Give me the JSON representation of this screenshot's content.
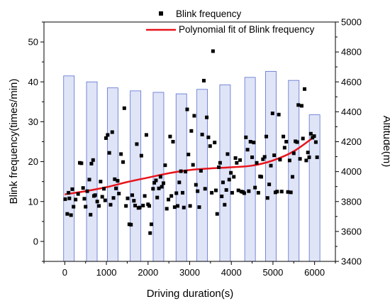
{
  "chart_data": {
    "type": "scatter",
    "xlabel": "Driving duration(s)",
    "ylabel": "Blink frequency(times/min)",
    "y2label": "Altitude(m)",
    "xlim": [
      -500,
      6500
    ],
    "ylim": [
      -5,
      55
    ],
    "y2lim": [
      3400,
      5000
    ],
    "x_ticks": [
      0,
      1000,
      2000,
      3000,
      4000,
      5000,
      6000
    ],
    "y_ticks": [
      0,
      10,
      20,
      30,
      40,
      50
    ],
    "y2_ticks": [
      3400,
      3600,
      3800,
      4000,
      4200,
      4400,
      4600,
      4800,
      5000
    ],
    "grid": false,
    "legend_position": "top-right",
    "legend": {
      "scatter_label": "Blink frequency",
      "fit_label": "Polynomial fit of Blink frequency"
    },
    "altitude_bars": {
      "x": [
        100,
        650,
        1150,
        1700,
        2250,
        2800,
        3300,
        3850,
        4450,
        4950,
        5500,
        6000
      ],
      "values": [
        4640,
        4600,
        4560,
        4540,
        4530,
        4520,
        4550,
        4580,
        4630,
        4670,
        4610,
        4380
      ],
      "color": "#dfe4f7",
      "edge_color": "#5a6fcf"
    },
    "fit_line": {
      "x": [
        0,
        500,
        1000,
        1500,
        2000,
        2500,
        3000,
        3500,
        4000,
        4500,
        5000,
        5500,
        6000
      ],
      "y": [
        11.8,
        12.6,
        13.6,
        14.9,
        16.0,
        17.1,
        17.9,
        18.3,
        18.6,
        19.0,
        20.3,
        22.6,
        26.3
      ],
      "color": "#e8141b"
    },
    "series": [
      {
        "name": "Blink frequency",
        "marker": "square",
        "color": "#000000",
        "points": [
          [
            10,
            10.6
          ],
          [
            60,
            6.9
          ],
          [
            90,
            12.2
          ],
          [
            110,
            10.8
          ],
          [
            150,
            6.6
          ],
          [
            180,
            13.1
          ],
          [
            210,
            8.7
          ],
          [
            260,
            10.5
          ],
          [
            320,
            11.9
          ],
          [
            360,
            19.7
          ],
          [
            400,
            19.6
          ],
          [
            440,
            13.4
          ],
          [
            470,
            10.7
          ],
          [
            500,
            8.7
          ],
          [
            540,
            12.6
          ],
          [
            590,
            15.5
          ],
          [
            620,
            6.7
          ],
          [
            640,
            19.5
          ],
          [
            680,
            20.4
          ],
          [
            700,
            11.4
          ],
          [
            730,
            11.6
          ],
          [
            780,
            10.0
          ],
          [
            820,
            8.9
          ],
          [
            860,
            15.0
          ],
          [
            900,
            11.2
          ],
          [
            940,
            13.2
          ],
          [
            970,
            10.3
          ],
          [
            990,
            25.9
          ],
          [
            1030,
            26.7
          ],
          [
            1070,
            22.2
          ],
          [
            1100,
            9.2
          ],
          [
            1140,
            27.4
          ],
          [
            1170,
            10.9
          ],
          [
            1200,
            15.6
          ],
          [
            1230,
            13.3
          ],
          [
            1270,
            15.2
          ],
          [
            1300,
            12.0
          ],
          [
            1350,
            21.9
          ],
          [
            1400,
            19.9
          ],
          [
            1430,
            33.4
          ],
          [
            1470,
            8.9
          ],
          [
            1510,
            10.8
          ],
          [
            1550,
            4.3
          ],
          [
            1590,
            4.2
          ],
          [
            1620,
            11.6
          ],
          [
            1660,
            10.2
          ],
          [
            1690,
            9.0
          ],
          [
            1730,
            24.4
          ],
          [
            1770,
            8.4
          ],
          [
            1800,
            8.5
          ],
          [
            1840,
            21.5
          ],
          [
            1880,
            9.0
          ],
          [
            1920,
            11.4
          ],
          [
            1960,
            26.7
          ],
          [
            2000,
            9.3
          ],
          [
            2030,
            8.9
          ],
          [
            2050,
            2.1
          ],
          [
            2080,
            4.3
          ],
          [
            2120,
            13.2
          ],
          [
            2150,
            14.7
          ],
          [
            2190,
            15.3
          ],
          [
            2220,
            11.0
          ],
          [
            2260,
            13.3
          ],
          [
            2300,
            16.2
          ],
          [
            2330,
            13.7
          ],
          [
            2370,
            14.6
          ],
          [
            2410,
            19.1
          ],
          [
            2450,
            8.2
          ],
          [
            2490,
            10.5
          ],
          [
            2530,
            26.3
          ],
          [
            2560,
            11.4
          ],
          [
            2600,
            25.0
          ],
          [
            2640,
            8.6
          ],
          [
            2680,
            12.1
          ],
          [
            2710,
            8.9
          ],
          [
            2750,
            14.8
          ],
          [
            2790,
            17.6
          ],
          [
            2830,
            12.2
          ],
          [
            2860,
            8.5
          ],
          [
            2900,
            17.5
          ],
          [
            2940,
            33.1
          ],
          [
            2970,
            21.8
          ],
          [
            3010,
            8.9
          ],
          [
            3040,
            27.7
          ],
          [
            3080,
            19.2
          ],
          [
            3110,
            31.5
          ],
          [
            3150,
            14.2
          ],
          [
            3190,
            12.6
          ],
          [
            3230,
            8.6
          ],
          [
            3270,
            17.7
          ],
          [
            3300,
            26.8
          ],
          [
            3340,
            40.3
          ],
          [
            3370,
            13.2
          ],
          [
            3410,
            31.1
          ],
          [
            3450,
            26.1
          ],
          [
            3490,
            23.9
          ],
          [
            3530,
            12.2
          ],
          [
            3560,
            47.7
          ],
          [
            3600,
            24.8
          ],
          [
            3630,
            12.8
          ],
          [
            3660,
            6.9
          ],
          [
            3700,
            18.6
          ],
          [
            3730,
            19.7
          ],
          [
            3770,
            11.3
          ],
          [
            3800,
            14.8
          ],
          [
            3840,
            9.2
          ],
          [
            3880,
            12.9
          ],
          [
            3910,
            21.9
          ],
          [
            3950,
            15.5
          ],
          [
            3990,
            17.2
          ],
          [
            4020,
            12.2
          ],
          [
            4060,
            16.2
          ],
          [
            4100,
            20.9
          ],
          [
            4130,
            19.7
          ],
          [
            4170,
            12.8
          ],
          [
            4210,
            20.4
          ],
          [
            4240,
            12.5
          ],
          [
            4280,
            12.4
          ],
          [
            4310,
            12.1
          ],
          [
            4350,
            26.1
          ],
          [
            4390,
            23.0
          ],
          [
            4420,
            12.6
          ],
          [
            4460,
            25.0
          ],
          [
            4500,
            21.1
          ],
          [
            4540,
            24.8
          ],
          [
            4570,
            13.5
          ],
          [
            4610,
            19.7
          ],
          [
            4650,
            12.2
          ],
          [
            4690,
            16.3
          ],
          [
            4720,
            16.2
          ],
          [
            4760,
            20.6
          ],
          [
            4800,
            21.2
          ],
          [
            4840,
            26.3
          ],
          [
            4870,
            10.9
          ],
          [
            4910,
            14.3
          ],
          [
            4950,
            19.0
          ],
          [
            4990,
            32.1
          ],
          [
            5030,
            21.6
          ],
          [
            5060,
            12.3
          ],
          [
            5100,
            12.5
          ],
          [
            5140,
            31.8
          ],
          [
            5170,
            20.5
          ],
          [
            5210,
            12.5
          ],
          [
            5250,
            26.3
          ],
          [
            5280,
            23.5
          ],
          [
            5320,
            25.0
          ],
          [
            5360,
            12.4
          ],
          [
            5400,
            20.3
          ],
          [
            5430,
            12.3
          ],
          [
            5470,
            16.2
          ],
          [
            5500,
            22.1
          ],
          [
            5540,
            25.1
          ],
          [
            5580,
            24.9
          ],
          [
            5610,
            34.2
          ],
          [
            5650,
            20.7
          ],
          [
            5690,
            34.0
          ],
          [
            5720,
            25.8
          ],
          [
            5760,
            38.2
          ],
          [
            5800,
            20.3
          ],
          [
            5840,
            22.3
          ],
          [
            5870,
            21.1
          ],
          [
            5910,
            27.0
          ],
          [
            5950,
            26.0
          ],
          [
            5990,
            26.4
          ],
          [
            6030,
            24.9
          ],
          [
            6060,
            21.1
          ]
        ]
      }
    ]
  }
}
